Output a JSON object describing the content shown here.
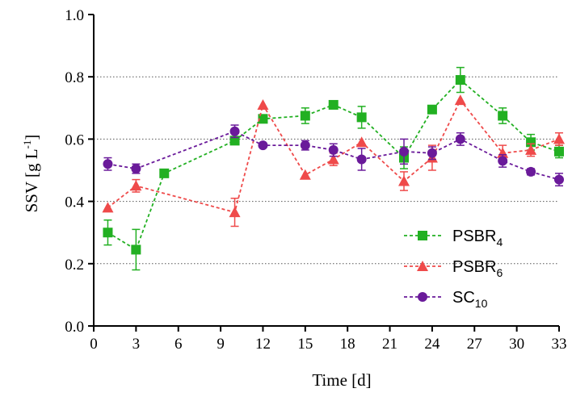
{
  "chart_data": {
    "type": "line",
    "xlabel": "Time [d]",
    "ylabel_main": "SSV [g L",
    "ylabel_sup": "-1",
    "ylabel_end": "]",
    "xlim": [
      0,
      33
    ],
    "ylim": [
      0,
      1.0
    ],
    "xticks": [
      0,
      3,
      6,
      9,
      12,
      15,
      18,
      21,
      24,
      27,
      30,
      33
    ],
    "yticks": [
      0.0,
      0.2,
      0.4,
      0.6,
      0.8,
      1.0
    ],
    "ytick_labels": [
      "0.0",
      "0.2",
      "0.4",
      "0.6",
      "0.8",
      "1.0"
    ],
    "grid": "horizontal dotted",
    "legend_position": "lower-right",
    "series": [
      {
        "name_main": "PSBR",
        "name_sub": "4",
        "color": "#22b022",
        "marker": "square",
        "x": [
          1,
          3,
          5,
          10,
          12,
          15,
          17,
          19,
          22,
          24,
          26,
          29,
          31,
          33
        ],
        "y": [
          0.3,
          0.245,
          0.49,
          0.595,
          0.665,
          0.675,
          0.71,
          0.67,
          0.54,
          0.695,
          0.79,
          0.675,
          0.59,
          0.56
        ],
        "err": [
          0.04,
          0.065,
          0.0,
          0.0,
          0.0,
          0.025,
          0.0,
          0.035,
          0.035,
          0.0,
          0.04,
          0.025,
          0.025,
          0.02
        ]
      },
      {
        "name_main": "PSBR",
        "name_sub": "6",
        "color": "#ef4a4a",
        "marker": "triangle",
        "x": [
          1,
          3,
          10,
          12,
          15,
          17,
          19,
          22,
          24,
          26,
          29,
          31,
          33
        ],
        "y": [
          0.38,
          0.45,
          0.365,
          0.71,
          0.485,
          0.535,
          0.59,
          0.465,
          0.54,
          0.725,
          0.555,
          0.565,
          0.6
        ],
        "err": [
          0.0,
          0.02,
          0.045,
          0.0,
          0.0,
          0.02,
          0.0,
          0.03,
          0.04,
          0.0,
          0.025,
          0.02,
          0.02
        ]
      },
      {
        "name_main": "SC",
        "name_sub": "10",
        "color": "#6a1a9a",
        "marker": "circle",
        "x": [
          1,
          3,
          10,
          12,
          15,
          17,
          19,
          22,
          24,
          26,
          29,
          31,
          33
        ],
        "y": [
          0.52,
          0.505,
          0.625,
          0.58,
          0.58,
          0.565,
          0.535,
          0.56,
          0.555,
          0.6,
          0.53,
          0.495,
          0.47
        ],
        "err": [
          0.02,
          0.015,
          0.02,
          0.0,
          0.015,
          0.02,
          0.035,
          0.04,
          0.02,
          0.02,
          0.02,
          0.01,
          0.02
        ]
      }
    ]
  }
}
